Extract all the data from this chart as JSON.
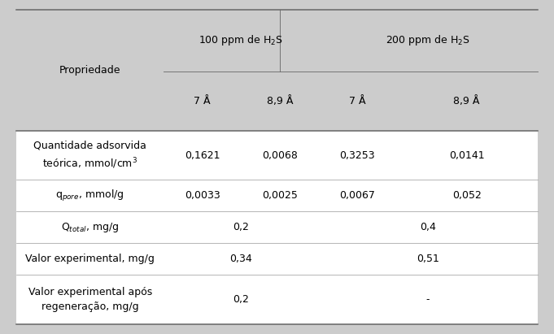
{
  "fig_bg": "#cccccc",
  "header_bg": "#cccccc",
  "body_bg": "#ffffff",
  "col0_label": "Propriedade",
  "group1_label": "100 ppm de H$_2$S",
  "group2_label": "200 ppm de H$_2$S",
  "subheaders": [
    "7 Å",
    "8,9 Å",
    "7 Å",
    "8,9 Å"
  ],
  "rows": [
    {
      "label": "Quantidade adsorvida\nteórica, mmol/cm$^3$",
      "vals": [
        "0,1621",
        "0,0068",
        "0,3253",
        "0,0141"
      ],
      "span": false
    },
    {
      "label": "q$_{pore}$, mmol/g",
      "vals": [
        "0,0033",
        "0,0025",
        "0,0067",
        "0,052"
      ],
      "span": false
    },
    {
      "label": "Q$_{total}$, mg/g",
      "vals": [
        "",
        "0,2",
        "",
        "0,4"
      ],
      "span": true
    },
    {
      "label": "Valor experimental, mg/g",
      "vals": [
        "",
        "0,34",
        "",
        "0,51"
      ],
      "span": true
    },
    {
      "label": "Valor experimental após\nregeneração, mg/g",
      "vals": [
        "",
        "0,2",
        "",
        "-"
      ],
      "span": true
    }
  ],
  "font_size": 9.0,
  "line_color": "#666666",
  "sep_color": "#999999",
  "outer_lw": 1.1,
  "inner_lw": 0.6,
  "sep_lw": 0.5
}
